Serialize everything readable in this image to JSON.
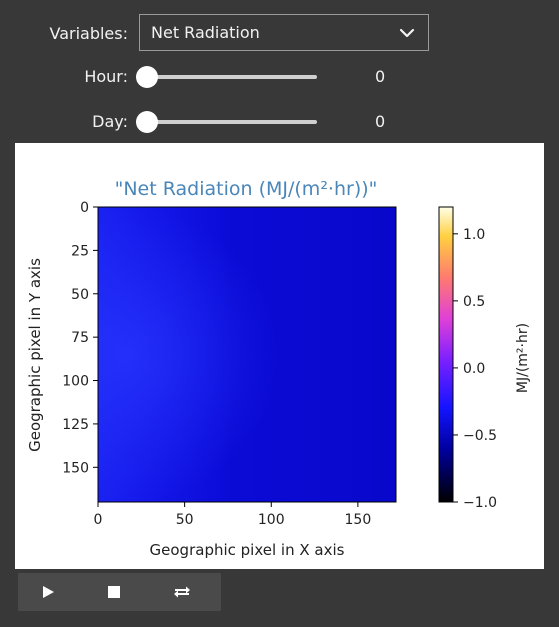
{
  "widgets": {
    "variable_label": "Variables:",
    "variable_value": "Net Radiation",
    "hour_label": "Hour:",
    "hour_value": "0",
    "hour_level": 0,
    "day_label": "Day:",
    "day_value": "0",
    "day_level": 0
  },
  "chart_data": {
    "type": "heatmap",
    "title": "\"Net Radiation (MJ/(m²·hr))\"",
    "xlabel": "Geographic pixel in X axis",
    "ylabel": "Geographic pixel in Y axis",
    "xticks": [
      "0",
      "50",
      "100",
      "150"
    ],
    "yticks": [
      "0",
      "25",
      "50",
      "75",
      "100",
      "125",
      "150"
    ],
    "xlim": [
      0,
      172
    ],
    "ylim": [
      0,
      170
    ],
    "colorbar": {
      "label": "MJ/(m²·hr)",
      "colormap": "gnuplot2",
      "range": [
        -1.0,
        1.2
      ],
      "ticks": [
        "1.0",
        "0.5",
        "0.0",
        "−0.5",
        "−1.0"
      ]
    },
    "description_values": "nearly uniform values around -0.6 to -0.7 across grid; slightly brighter blue on left side",
    "colors": {
      "title": "#4a86b8",
      "dominant_fill": "#0b0ad2"
    }
  },
  "playback": {
    "play_icon": "play-icon",
    "stop_icon": "stop-icon",
    "loop_icon": "loop-icon"
  }
}
